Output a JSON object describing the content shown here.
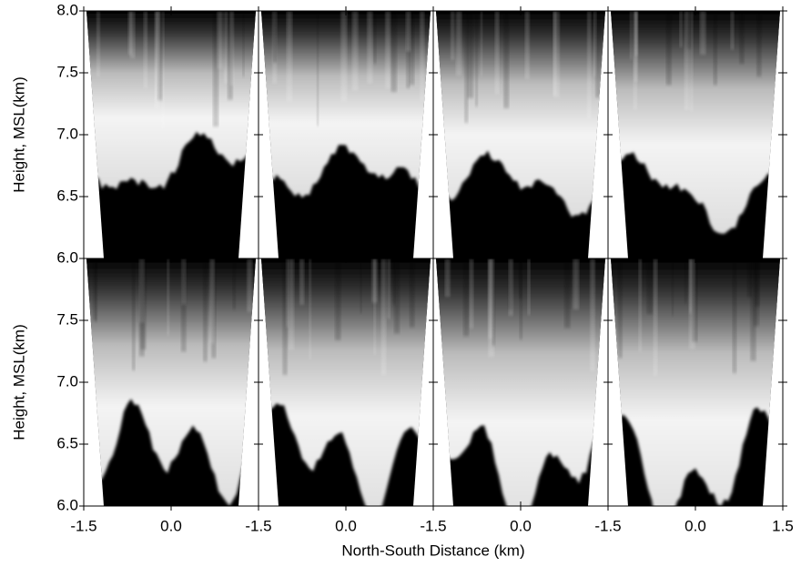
{
  "chart_data": {
    "type": "image",
    "ylabel": "Height, MSL(km)",
    "xlabel": "North-South Distance (km)",
    "xlim": [
      -1.5,
      1.5
    ],
    "ylim": [
      6,
      8
    ],
    "xticks": [
      -1.5,
      {
        "value": 0,
        "label": "0.0"
      },
      1.5
    ],
    "rows": [
      {
        "yticks": [
          {
            "value": 6,
            "label": "6.0"
          },
          6.5,
          {
            "value": 7,
            "label": "7.0"
          },
          7.5,
          {
            "value": 8,
            "label": "8.0"
          }
        ]
      },
      {
        "yticks": [
          {
            "value": 6,
            "label": "6.0"
          },
          6.5,
          {
            "value": 7,
            "label": "7.0"
          },
          7.5
        ]
      }
    ],
    "columns": 4
  }
}
